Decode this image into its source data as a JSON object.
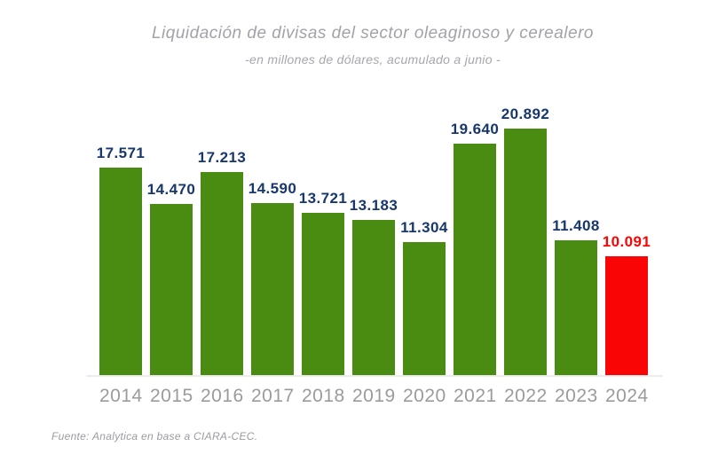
{
  "chart_data": {
    "type": "bar",
    "title": "Liquidación de divisas del sector oleaginoso y cerealero",
    "subtitle": "-en millones de dólares, acumulado a junio -",
    "source": "Fuente: Analytica en base a CIARA-CEC.",
    "categories": [
      "2014",
      "2015",
      "2016",
      "2017",
      "2018",
      "2019",
      "2020",
      "2021",
      "2022",
      "2023",
      "2024"
    ],
    "values": [
      17571,
      14470,
      17213,
      14590,
      13721,
      13183,
      11304,
      19640,
      20892,
      11408,
      10091
    ],
    "value_labels": [
      "17.571",
      "14.470",
      "17.213",
      "14.590",
      "13.721",
      "13.183",
      "11.304",
      "19.640",
      "20.892",
      "11.408",
      "10.091"
    ],
    "highlight_category": "2024",
    "highlight_index": 10,
    "ylim": [
      0,
      21000
    ],
    "grid": false,
    "legend": false,
    "colors": {
      "bar": "#4a8c12",
      "bar_highlight": "#f90505",
      "value_label": "#17376d",
      "value_label_highlight": "#f90505",
      "axis_label": "#9b9b9b",
      "title_text": "#a2a2a9",
      "axis_line": "#ececec"
    }
  }
}
